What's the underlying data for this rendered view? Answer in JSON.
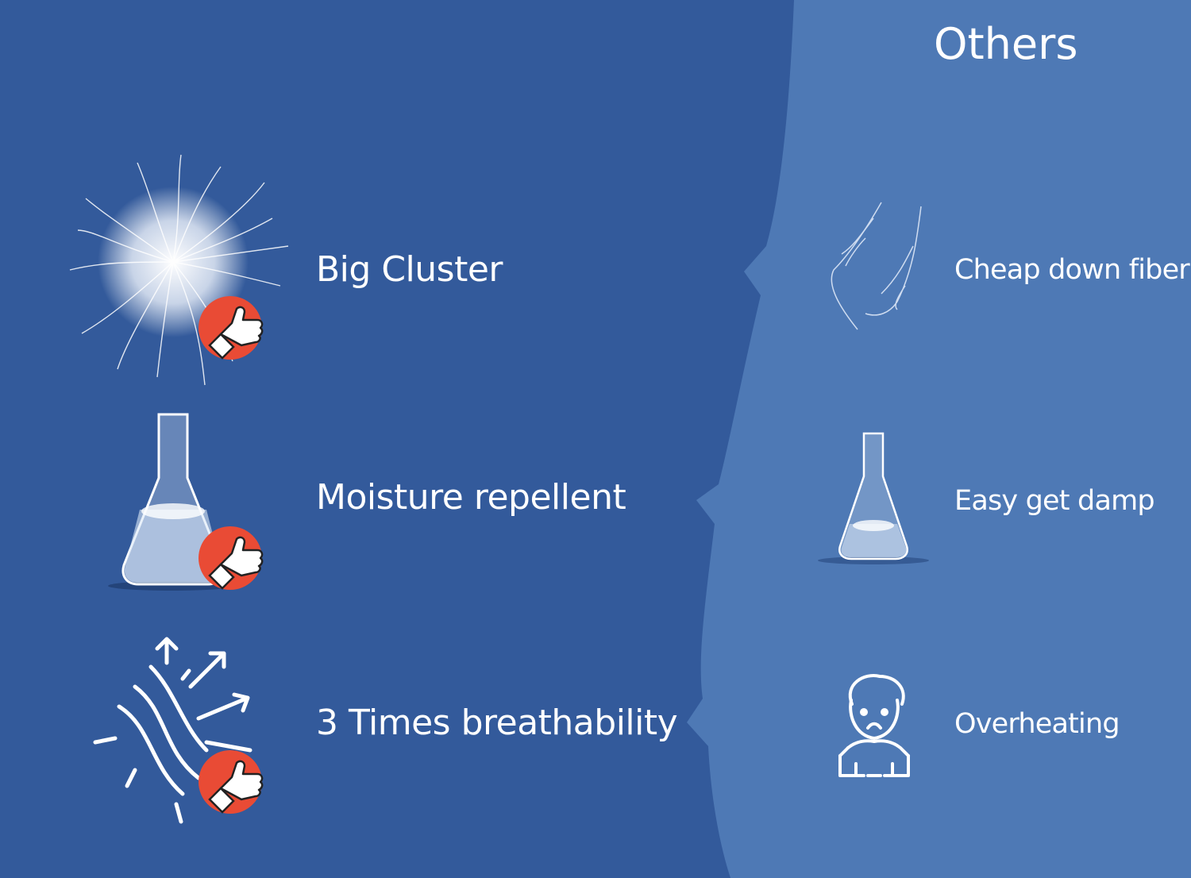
{
  "others_title": "Others",
  "colors": {
    "left_panel": "#335a9b",
    "right_panel": "#4e79b5",
    "badge": "#e94b35",
    "icon_line": "#ffffff"
  },
  "features": [
    {
      "label": "Big Cluster",
      "icon": "down-cluster-icon"
    },
    {
      "label": "Moisture repellent",
      "icon": "flask-icon"
    },
    {
      "label": "3 Times breathability",
      "icon": "airflow-arrows-icon"
    }
  ],
  "others": [
    {
      "label": "Cheap down fiber",
      "icon": "thin-fiber-icon"
    },
    {
      "label": "Easy get damp",
      "icon": "small-flask-icon"
    },
    {
      "label": "Overheating",
      "icon": "sweating-person-icon"
    }
  ],
  "badge_icon": "thumbs-up-badge-icon"
}
